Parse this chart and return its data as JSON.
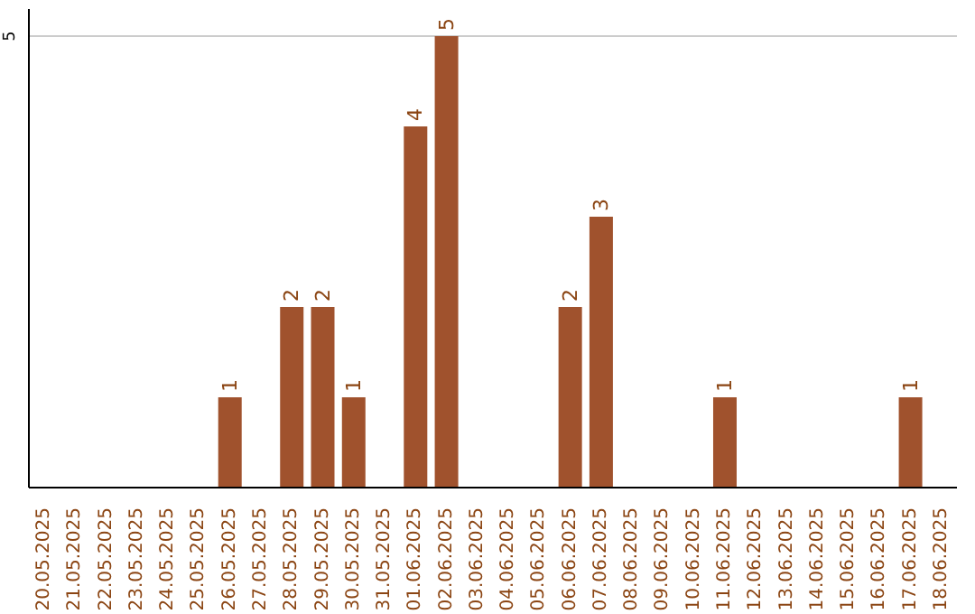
{
  "chart_data": {
    "type": "bar",
    "categories": [
      "20.05.2025",
      "21.05.2025",
      "22.05.2025",
      "23.05.2025",
      "24.05.2025",
      "25.05.2025",
      "26.05.2025",
      "27.05.2025",
      "28.05.2025",
      "29.05.2025",
      "30.05.2025",
      "31.05.2025",
      "01.06.2025",
      "02.06.2025",
      "03.06.2025",
      "04.06.2025",
      "05.06.2025",
      "06.06.2025",
      "07.06.2025",
      "08.06.2025",
      "09.06.2025",
      "10.06.2025",
      "11.06.2025",
      "12.06.2025",
      "13.06.2025",
      "14.06.2025",
      "15.06.2025",
      "16.06.2025",
      "17.06.2025",
      "18.06.2025"
    ],
    "values": [
      0,
      0,
      0,
      0,
      0,
      0,
      1,
      0,
      2,
      2,
      1,
      0,
      4,
      5,
      0,
      0,
      0,
      2,
      3,
      0,
      0,
      0,
      1,
      0,
      0,
      0,
      0,
      0,
      1,
      0
    ],
    "value_labels": [
      null,
      null,
      null,
      null,
      null,
      null,
      "1",
      null,
      "2",
      "2",
      "1",
      null,
      "4",
      "5",
      null,
      null,
      null,
      "2",
      "3",
      null,
      null,
      null,
      "1",
      null,
      null,
      null,
      null,
      null,
      "1",
      null
    ],
    "color": "#a0522d",
    "ylim": [
      0,
      5.3
    ],
    "yticks": [
      5
    ],
    "grid": "y",
    "legend": false
  }
}
